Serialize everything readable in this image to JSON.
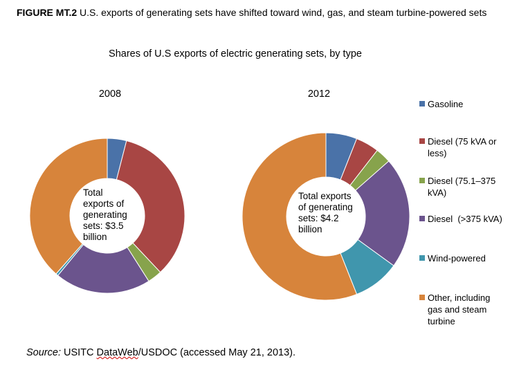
{
  "figure": {
    "label": "FIGURE MT.2",
    "title_text": " U.S. exports of generating sets have shifted toward wind, gas, and steam turbine-powered sets"
  },
  "subtitle": "Shares of U.S exports of electric generating sets, by type",
  "source": {
    "label": "Source:",
    "text_pre": " USITC ",
    "text_link": "DataWeb",
    "text_post": "/USDOC (accessed May 21, 2013)."
  },
  "colors": {
    "Gasoline": "#4a72a8",
    "Diesel (75 kVA or less)": "#a84644",
    "Diesel (75.1–375 kVA)": "#87a34c",
    "Diesel (>375 kVA)": "#6b548d",
    "Wind-powered": "#4096ad",
    "Other": "#d7843b"
  },
  "legend": [
    {
      "label": "Gasoline",
      "color": "#4a72a8"
    },
    {
      "label": "Diesel (75 kVA or less)",
      "color": "#a84644"
    },
    {
      "label": "Diesel (75.1–375 kVA)",
      "color": "#87a34c"
    },
    {
      "label": "Diesel  (>375 kVA)",
      "color": "#6b548d"
    },
    {
      "label": "Wind-powered",
      "color": "#4096ad"
    },
    {
      "label": "Other, including gas and steam turbine",
      "color": "#d7843b"
    }
  ],
  "chart_data": [
    {
      "type": "pie",
      "donut": true,
      "title": "2008",
      "center_label": "Total\nexports of\ngenerating\nsets: $3.5\nbillion",
      "categories": [
        "Gasoline",
        "Diesel (75 kVA or less)",
        "Diesel (75.1–375 kVA)",
        "Diesel (>375 kVA)",
        "Wind-powered",
        "Other, including gas and steam turbine"
      ],
      "values": [
        4,
        34,
        3,
        20,
        0.5,
        38.5
      ],
      "unit": "percent"
    },
    {
      "type": "pie",
      "donut": true,
      "title": "2012",
      "center_label": "Total exports\nof generating\nsets: $4.2\nbillion",
      "categories": [
        "Gasoline",
        "Diesel (75 kVA or less)",
        "Diesel (75.1–375 kVA)",
        "Diesel (>375 kVA)",
        "Wind-powered",
        "Other, including gas and steam turbine"
      ],
      "values": [
        6,
        4.5,
        3,
        21.5,
        9,
        56
      ],
      "unit": "percent"
    }
  ]
}
